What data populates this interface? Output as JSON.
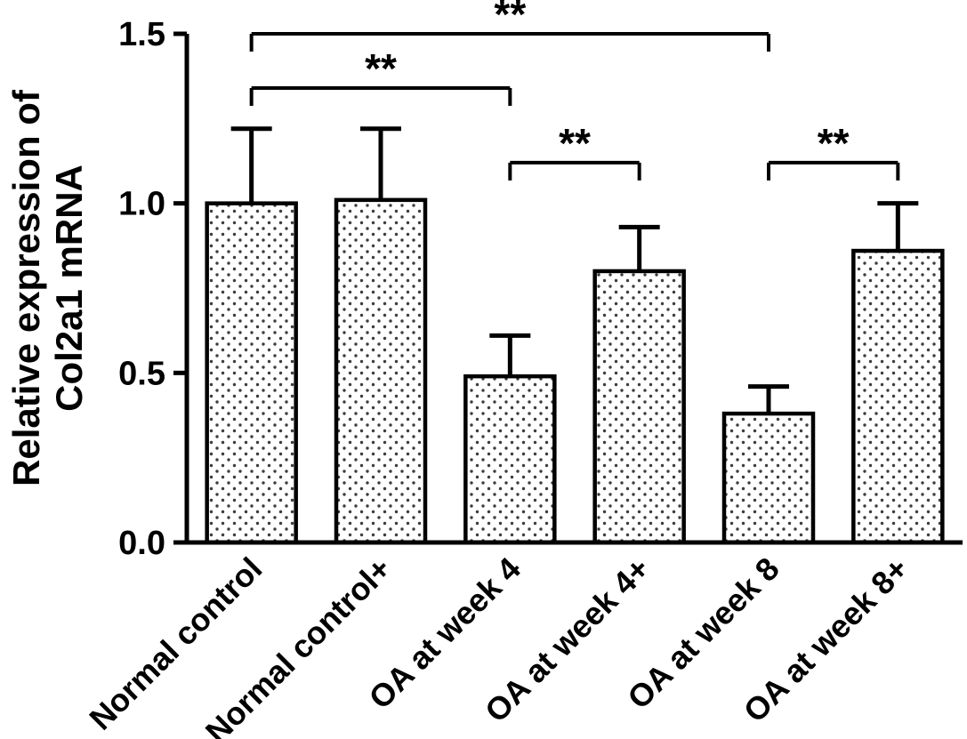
{
  "chart_data": {
    "type": "bar",
    "title": "",
    "ylabel": "Relative expression of Col2a1 mRNA",
    "ylabel_lines": [
      "Relative expression of",
      "Col2a1 mRNA"
    ],
    "xlabel": "",
    "categories": [
      "Normal control",
      "Normal control+",
      "OA at week 4",
      "OA at week 4+",
      "OA at week 8",
      "OA at week 8+"
    ],
    "values": [
      1.0,
      1.01,
      0.49,
      0.8,
      0.38,
      0.86
    ],
    "errors": [
      0.22,
      0.21,
      0.12,
      0.13,
      0.08,
      0.14
    ],
    "error_bar_style": "upper whisker with cap",
    "ylim": [
      0,
      1.5
    ],
    "yticks": [
      "0.0",
      "0.5",
      "1.0",
      "1.5"
    ],
    "ytick_values": [
      0,
      0.5,
      1.0,
      1.5
    ],
    "grid": false,
    "legend": null,
    "bar_style": "white fill with black stipple dot pattern, black outline",
    "colors": {
      "axis": "#000000",
      "bar_outline": "#000000",
      "bar_fill": "#ffffff",
      "stipple_dot": "#3d3d3d",
      "background": "#ffffff"
    },
    "significance": [
      {
        "from": 0,
        "to": 4,
        "label": "**",
        "y": 1.5
      },
      {
        "from": 0,
        "to": 2,
        "label": "**",
        "y": 1.34
      },
      {
        "from": 2,
        "to": 3,
        "label": "**",
        "y": 1.12
      },
      {
        "from": 4,
        "to": 5,
        "label": "**",
        "y": 1.12
      }
    ]
  }
}
